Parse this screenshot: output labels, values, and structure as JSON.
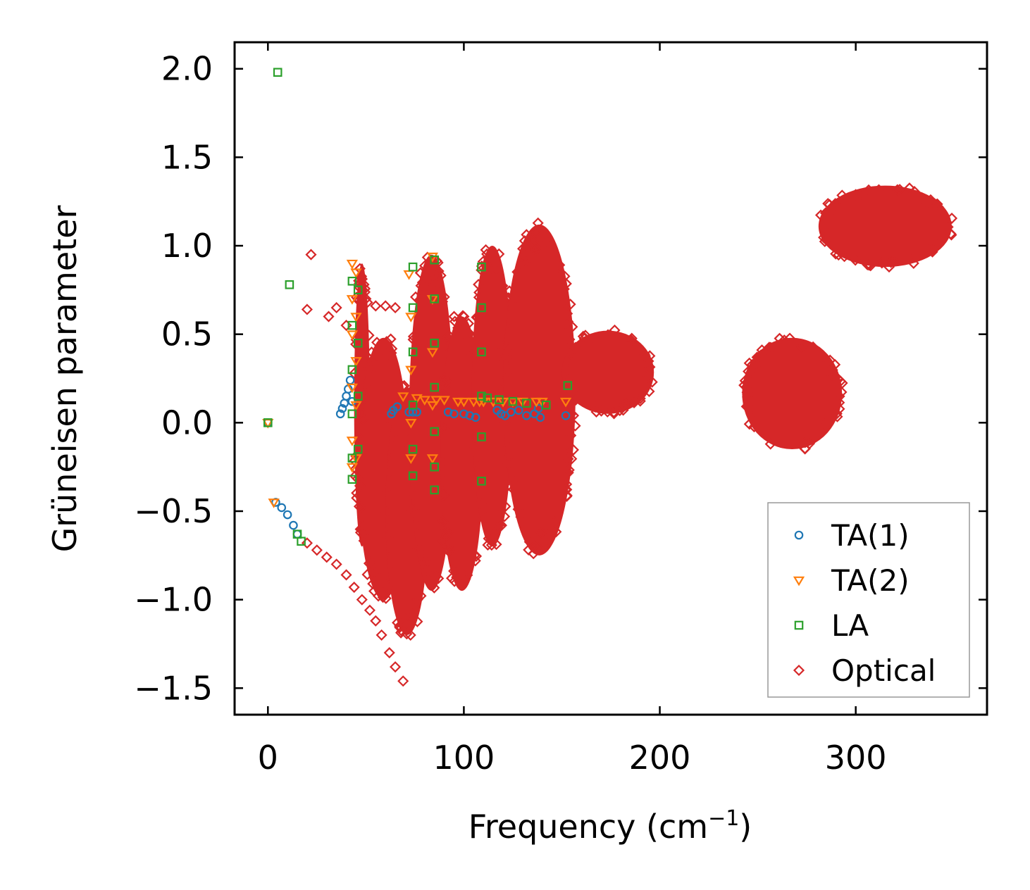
{
  "chart_data": {
    "type": "scatter",
    "xlabel": "Frequency (cm",
    "xlabel_sup": "−1",
    "xlabel_close": ")",
    "ylabel": "Grüneisen parameter",
    "xlim": [
      -17,
      367
    ],
    "ylim": [
      -1.65,
      2.15
    ],
    "xticks": [
      0,
      100,
      200,
      300
    ],
    "xtick_labels": [
      "0",
      "100",
      "200",
      "300"
    ],
    "yticks": [
      -1.5,
      -1.0,
      -0.5,
      0.0,
      0.5,
      1.0,
      1.5,
      2.0
    ],
    "ytick_labels": [
      "−1.5",
      "−1.0",
      "−0.5",
      "0.0",
      "0.5",
      "1.0",
      "1.5",
      "2.0"
    ],
    "legend_position": "lower-right",
    "series": [
      {
        "name": "TA(1)",
        "marker": "circle",
        "color": "#1f77b4",
        "points": [
          [
            0,
            0.0
          ],
          [
            4,
            -0.45
          ],
          [
            7,
            -0.48
          ],
          [
            10,
            -0.52
          ],
          [
            13,
            -0.58
          ],
          [
            15,
            -0.63
          ],
          [
            37,
            0.05
          ],
          [
            38,
            0.08
          ],
          [
            39,
            0.11
          ],
          [
            40,
            0.15
          ],
          [
            41,
            0.19
          ],
          [
            42,
            0.24
          ],
          [
            43,
            0.12
          ],
          [
            63,
            0.05
          ],
          [
            64,
            0.07
          ],
          [
            66,
            0.09
          ],
          [
            72,
            0.06
          ],
          [
            74,
            0.06
          ],
          [
            76,
            0.06
          ],
          [
            92,
            0.06
          ],
          [
            95,
            0.05
          ],
          [
            100,
            0.05
          ],
          [
            103,
            0.04
          ],
          [
            106,
            0.03
          ],
          [
            117,
            0.07
          ],
          [
            119,
            0.05
          ],
          [
            121,
            0.04
          ],
          [
            124,
            0.06
          ],
          [
            128,
            0.07
          ],
          [
            132,
            0.04
          ],
          [
            136,
            0.05
          ],
          [
            138,
            0.08
          ],
          [
            139,
            0.03
          ],
          [
            152,
            0.04
          ]
        ]
      },
      {
        "name": "TA(2)",
        "marker": "triangle-down",
        "color": "#ff7f0e",
        "points": [
          [
            0,
            0.0
          ],
          [
            3,
            -0.45
          ],
          [
            43,
            0.9
          ],
          [
            43,
            0.7
          ],
          [
            43,
            0.5
          ],
          [
            43,
            0.2
          ],
          [
            43,
            -0.1
          ],
          [
            43,
            -0.25
          ],
          [
            45,
            0.85
          ],
          [
            45,
            0.6
          ],
          [
            45,
            0.35
          ],
          [
            45,
            0.1
          ],
          [
            45,
            -0.2
          ],
          [
            69,
            0.15
          ],
          [
            72,
            0.84
          ],
          [
            73,
            0.6
          ],
          [
            73,
            0.3
          ],
          [
            73,
            0.0
          ],
          [
            73,
            -0.2
          ],
          [
            76,
            0.14
          ],
          [
            80,
            0.13
          ],
          [
            84,
            0.94
          ],
          [
            84,
            0.7
          ],
          [
            84,
            0.4
          ],
          [
            84,
            0.1
          ],
          [
            84,
            -0.2
          ],
          [
            86,
            0.13
          ],
          [
            90,
            0.13
          ],
          [
            97,
            0.12
          ],
          [
            100,
            0.12
          ],
          [
            105,
            0.12
          ],
          [
            108,
            0.12
          ],
          [
            110,
            0.12
          ],
          [
            115,
            0.12
          ],
          [
            120,
            0.12
          ],
          [
            125,
            0.12
          ],
          [
            130,
            0.12
          ],
          [
            137,
            0.12
          ],
          [
            140,
            0.12
          ],
          [
            152,
            0.12
          ]
        ]
      },
      {
        "name": "LA",
        "marker": "square",
        "color": "#2ca02c",
        "points": [
          [
            0,
            0.0
          ],
          [
            5,
            1.98
          ],
          [
            11,
            0.78
          ],
          [
            15,
            -0.63
          ],
          [
            17,
            -0.67
          ],
          [
            43,
            0.8
          ],
          [
            43,
            0.55
          ],
          [
            43,
            0.3
          ],
          [
            43,
            0.05
          ],
          [
            43,
            -0.2
          ],
          [
            43,
            -0.32
          ],
          [
            46,
            0.75
          ],
          [
            46,
            0.45
          ],
          [
            46,
            0.15
          ],
          [
            46,
            -0.15
          ],
          [
            74,
            0.88
          ],
          [
            74,
            0.65
          ],
          [
            74,
            0.4
          ],
          [
            74,
            0.1
          ],
          [
            74,
            -0.15
          ],
          [
            74,
            -0.3
          ],
          [
            85,
            0.92
          ],
          [
            85,
            0.7
          ],
          [
            85,
            0.45
          ],
          [
            85,
            0.2
          ],
          [
            85,
            -0.05
          ],
          [
            85,
            -0.25
          ],
          [
            85,
            -0.38
          ],
          [
            109,
            0.88
          ],
          [
            109,
            0.65
          ],
          [
            109,
            0.4
          ],
          [
            109,
            0.15
          ],
          [
            109,
            -0.08
          ],
          [
            109,
            -0.33
          ],
          [
            112,
            0.14
          ],
          [
            118,
            0.13
          ],
          [
            125,
            0.12
          ],
          [
            132,
            0.11
          ],
          [
            142,
            0.1
          ],
          [
            153,
            0.21
          ]
        ]
      },
      {
        "name": "Optical",
        "marker": "diamond",
        "color": "#d62728",
        "scatter_points": [
          [
            20,
            0.64
          ],
          [
            22,
            0.95
          ],
          [
            31,
            0.6
          ],
          [
            35,
            0.65
          ],
          [
            40,
            0.55
          ],
          [
            50,
            0.7
          ],
          [
            55,
            0.66
          ],
          [
            60,
            0.66
          ],
          [
            65,
            0.65
          ],
          [
            95,
            0.6
          ],
          [
            100,
            0.6
          ],
          [
            20,
            -0.68
          ],
          [
            25,
            -0.72
          ],
          [
            30,
            -0.76
          ],
          [
            35,
            -0.8
          ],
          [
            40,
            -0.86
          ],
          [
            44,
            -0.93
          ],
          [
            48,
            -1.0
          ],
          [
            52,
            -1.06
          ],
          [
            55,
            -1.12
          ],
          [
            58,
            -1.2
          ],
          [
            62,
            -1.3
          ],
          [
            65,
            -1.38
          ],
          [
            69,
            -1.46
          ]
        ],
        "regions": [
          {
            "x": [
              44,
              52
            ],
            "y": [
              -0.7,
              0.9
            ]
          },
          {
            "x": [
              46,
              72
            ],
            "y": [
              -1.0,
              0.48
            ]
          },
          {
            "x": [
              60,
              82
            ],
            "y": [
              -1.2,
              0.2
            ]
          },
          {
            "x": [
              72,
              95
            ],
            "y": [
              -0.95,
              0.95
            ]
          },
          {
            "x": [
              88,
              110
            ],
            "y": [
              -0.95,
              0.6
            ]
          },
          {
            "x": [
              104,
              125
            ],
            "y": [
              -0.7,
              1.0
            ]
          },
          {
            "x": [
              120,
              157
            ],
            "y": [
              -0.75,
              1.12
            ]
          },
          {
            "x": [
              150,
              197
            ],
            "y": [
              0.05,
              0.52
            ]
          },
          {
            "x": [
              242,
              293
            ],
            "y": [
              -0.15,
              0.48
            ]
          },
          {
            "x": [
              281,
              349
            ],
            "y": [
              0.88,
              1.34
            ]
          }
        ]
      }
    ]
  }
}
